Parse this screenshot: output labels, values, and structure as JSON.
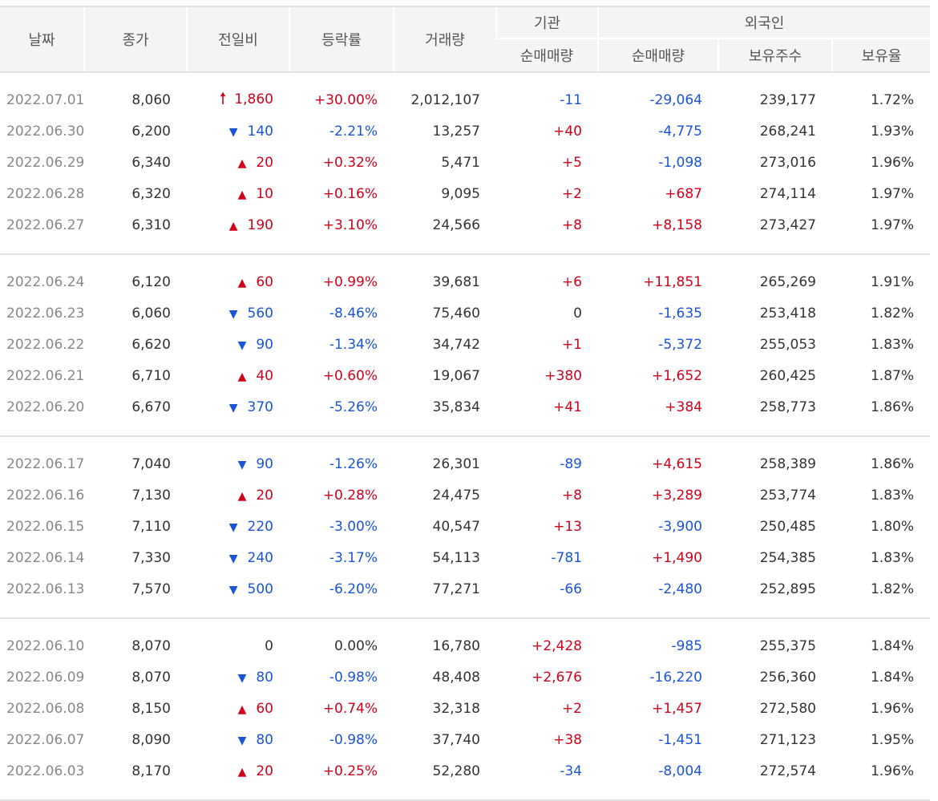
{
  "header": {
    "date": "날짜",
    "close": "종가",
    "change": "전일비",
    "rate": "등락률",
    "volume": "거래량",
    "inst": "기관",
    "foreign": "외국인",
    "inst_net": "순매매량",
    "for_net": "순매매량",
    "for_hold": "보유주수",
    "for_ratio": "보유율"
  },
  "groups": [
    [
      {
        "date": "2022.07.01",
        "close": "8,060",
        "dir": "limit-up",
        "change": "1,860",
        "rate": "+30.00%",
        "volume": "2,012,107",
        "inst": "-11",
        "foreign": "-29,064",
        "hold": "239,177",
        "ratio": "1.72%"
      },
      {
        "date": "2022.06.30",
        "close": "6,200",
        "dir": "down",
        "change": "140",
        "rate": "-2.21%",
        "volume": "13,257",
        "inst": "+40",
        "foreign": "-4,775",
        "hold": "268,241",
        "ratio": "1.93%"
      },
      {
        "date": "2022.06.29",
        "close": "6,340",
        "dir": "up",
        "change": "20",
        "rate": "+0.32%",
        "volume": "5,471",
        "inst": "+5",
        "foreign": "-1,098",
        "hold": "273,016",
        "ratio": "1.96%"
      },
      {
        "date": "2022.06.28",
        "close": "6,320",
        "dir": "up",
        "change": "10",
        "rate": "+0.16%",
        "volume": "9,095",
        "inst": "+2",
        "foreign": "+687",
        "hold": "274,114",
        "ratio": "1.97%"
      },
      {
        "date": "2022.06.27",
        "close": "6,310",
        "dir": "up",
        "change": "190",
        "rate": "+3.10%",
        "volume": "24,566",
        "inst": "+8",
        "foreign": "+8,158",
        "hold": "273,427",
        "ratio": "1.97%"
      }
    ],
    [
      {
        "date": "2022.06.24",
        "close": "6,120",
        "dir": "up",
        "change": "60",
        "rate": "+0.99%",
        "volume": "39,681",
        "inst": "+6",
        "foreign": "+11,851",
        "hold": "265,269",
        "ratio": "1.91%"
      },
      {
        "date": "2022.06.23",
        "close": "6,060",
        "dir": "down",
        "change": "560",
        "rate": "-8.46%",
        "volume": "75,460",
        "inst": "0",
        "foreign": "-1,635",
        "hold": "253,418",
        "ratio": "1.82%"
      },
      {
        "date": "2022.06.22",
        "close": "6,620",
        "dir": "down",
        "change": "90",
        "rate": "-1.34%",
        "volume": "34,742",
        "inst": "+1",
        "foreign": "-5,372",
        "hold": "255,053",
        "ratio": "1.83%"
      },
      {
        "date": "2022.06.21",
        "close": "6,710",
        "dir": "up",
        "change": "40",
        "rate": "+0.60%",
        "volume": "19,067",
        "inst": "+380",
        "foreign": "+1,652",
        "hold": "260,425",
        "ratio": "1.87%"
      },
      {
        "date": "2022.06.20",
        "close": "6,670",
        "dir": "down",
        "change": "370",
        "rate": "-5.26%",
        "volume": "35,834",
        "inst": "+41",
        "foreign": "+384",
        "hold": "258,773",
        "ratio": "1.86%"
      }
    ],
    [
      {
        "date": "2022.06.17",
        "close": "7,040",
        "dir": "down",
        "change": "90",
        "rate": "-1.26%",
        "volume": "26,301",
        "inst": "-89",
        "foreign": "+4,615",
        "hold": "258,389",
        "ratio": "1.86%"
      },
      {
        "date": "2022.06.16",
        "close": "7,130",
        "dir": "up",
        "change": "20",
        "rate": "+0.28%",
        "volume": "24,475",
        "inst": "+8",
        "foreign": "+3,289",
        "hold": "253,774",
        "ratio": "1.83%"
      },
      {
        "date": "2022.06.15",
        "close": "7,110",
        "dir": "down",
        "change": "220",
        "rate": "-3.00%",
        "volume": "40,547",
        "inst": "+13",
        "foreign": "-3,900",
        "hold": "250,485",
        "ratio": "1.80%"
      },
      {
        "date": "2022.06.14",
        "close": "7,330",
        "dir": "down",
        "change": "240",
        "rate": "-3.17%",
        "volume": "54,113",
        "inst": "-781",
        "foreign": "+1,490",
        "hold": "254,385",
        "ratio": "1.83%"
      },
      {
        "date": "2022.06.13",
        "close": "7,570",
        "dir": "down",
        "change": "500",
        "rate": "-6.20%",
        "volume": "77,271",
        "inst": "-66",
        "foreign": "-2,480",
        "hold": "252,895",
        "ratio": "1.82%"
      }
    ],
    [
      {
        "date": "2022.06.10",
        "close": "8,070",
        "dir": "none",
        "change": "0",
        "rate": "0.00%",
        "volume": "16,780",
        "inst": "+2,428",
        "foreign": "-985",
        "hold": "255,375",
        "ratio": "1.84%"
      },
      {
        "date": "2022.06.09",
        "close": "8,070",
        "dir": "down",
        "change": "80",
        "rate": "-0.98%",
        "volume": "48,408",
        "inst": "+2,676",
        "foreign": "-16,220",
        "hold": "256,360",
        "ratio": "1.84%"
      },
      {
        "date": "2022.06.08",
        "close": "8,150",
        "dir": "up",
        "change": "60",
        "rate": "+0.74%",
        "volume": "32,318",
        "inst": "+2",
        "foreign": "+1,457",
        "hold": "272,580",
        "ratio": "1.96%"
      },
      {
        "date": "2022.06.07",
        "close": "8,090",
        "dir": "down",
        "change": "80",
        "rate": "-0.98%",
        "volume": "37,740",
        "inst": "+38",
        "foreign": "-1,451",
        "hold": "271,123",
        "ratio": "1.95%"
      },
      {
        "date": "2022.06.03",
        "close": "8,170",
        "dir": "up",
        "change": "20",
        "rate": "+0.25%",
        "volume": "52,280",
        "inst": "-34",
        "foreign": "-8,004",
        "hold": "272,574",
        "ratio": "1.96%"
      }
    ]
  ],
  "icons": {
    "up": "triangle-up-icon",
    "down": "triangle-down-icon",
    "limit-up": "arrow-up-icon"
  },
  "colors": {
    "up": "#d0021b",
    "down": "#1a55d6",
    "neutral": "#333333",
    "date": "#888888"
  }
}
